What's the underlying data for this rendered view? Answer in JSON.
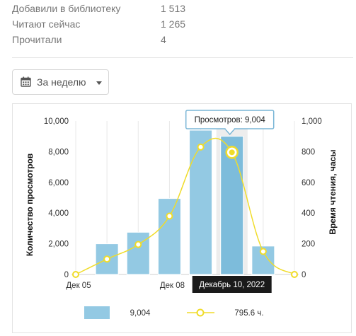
{
  "stats": [
    {
      "label": "Добавили в библиотеку",
      "value": "1 513"
    },
    {
      "label": "Читают сейчас",
      "value": "1 265"
    },
    {
      "label": "Прочитали",
      "value": "4"
    }
  ],
  "period_button": {
    "label": "За неделю",
    "icon": "calendar-icon"
  },
  "colors": {
    "bars": "#93c9e3",
    "bars_highlight": "#7dbcdb",
    "line": "#f0dc2a",
    "tooltip_border": "#7ab6d6",
    "date_tooltip_bg": "#1a1a1a"
  },
  "chart_data": {
    "type": "bar+line",
    "y_left_label": "Количество просмотров",
    "y_right_label": "Время чтения, часы",
    "y_left_ticks": [
      "0",
      "2,000",
      "4,000",
      "6,000",
      "8,000",
      "10,000"
    ],
    "y_right_ticks": [
      "0",
      "200",
      "400",
      "600",
      "800",
      "1,000"
    ],
    "ylim_left": [
      0,
      10000
    ],
    "ylim_right": [
      0,
      1000
    ],
    "x_tick_labels": [
      "Дек 05",
      "Дек 08"
    ],
    "x": [
      "2022-12-05",
      "2022-12-06",
      "2022-12-07",
      "2022-12-08",
      "2022-12-09",
      "2022-12-10",
      "2022-12-11",
      "2022-12-12"
    ],
    "series": [
      {
        "name": "",
        "kind": "bar",
        "values": [
          null,
          2000,
          2750,
          4950,
          9400,
          9004,
          1850,
          null
        ]
      },
      {
        "name": "",
        "kind": "line",
        "values": [
          0,
          100,
          195,
          380,
          830,
          795.6,
          150,
          0
        ]
      }
    ],
    "highlight_index": 5,
    "tooltip": "Просмотров: 9,004",
    "date_tooltip": "Декабрь 10, 2022",
    "legend": [
      {
        "kind": "bar",
        "value": "9,004"
      },
      {
        "kind": "line",
        "value": "795.6 ч."
      }
    ],
    "grid": true,
    "legend_position": "bottom"
  }
}
